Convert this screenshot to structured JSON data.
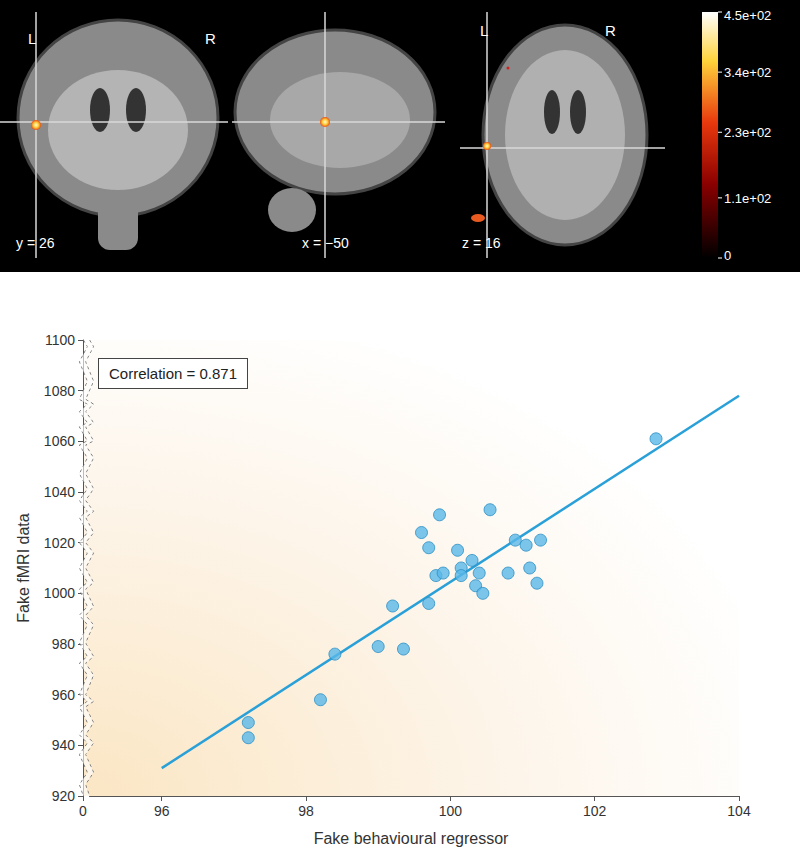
{
  "brain_panel": {
    "views": [
      {
        "label": "y = 26",
        "orientation": [
          "L",
          "R"
        ]
      },
      {
        "label": "x = −50",
        "orientation": []
      },
      {
        "label": "z = 16",
        "orientation": [
          "L",
          "R"
        ]
      }
    ],
    "colorbar": {
      "range": [
        0,
        450
      ],
      "ticks": [
        {
          "value": 450,
          "label": "4.5e+02"
        },
        {
          "value": 340,
          "label": "3.4e+02"
        },
        {
          "value": 230,
          "label": "2.3e+02"
        },
        {
          "value": 110,
          "label": "1.1e+02"
        },
        0
      ]
    }
  },
  "chart_data": {
    "type": "scatter",
    "x_label": "Fake behavioural regressor",
    "y_label": "Fake fMRI data",
    "annotation": "Correlation = 0.871",
    "x": [
      97.2,
      97.2,
      98.2,
      98.4,
      99.0,
      99.2,
      99.35,
      99.6,
      99.7,
      99.7,
      99.8,
      99.85,
      99.9,
      100.1,
      100.15,
      100.15,
      100.3,
      100.35,
      100.4,
      100.45,
      100.55,
      100.8,
      100.9,
      101.05,
      101.1,
      101.2,
      101.25,
      102.85
    ],
    "values": [
      949,
      943,
      958,
      976,
      979,
      995,
      978,
      1024,
      1018,
      996,
      1007,
      1031,
      1008,
      1017,
      1010,
      1007,
      1013,
      1003,
      1008,
      1000,
      1033,
      1008,
      1021,
      1019,
      1010,
      1004,
      1021,
      1061
    ],
    "fit_line": {
      "x": [
        96,
        104
      ],
      "values": [
        931,
        1078
      ]
    },
    "color": "#5ab8e8",
    "marker": "circle",
    "xlim": [
      0,
      104
    ],
    "ylim": [
      920,
      1100
    ],
    "xticks": [
      0,
      96,
      98,
      100,
      102,
      104
    ],
    "yticks": [
      920,
      940,
      960,
      980,
      1000,
      1020,
      1040,
      1060,
      1080,
      1100
    ],
    "grid": false
  }
}
